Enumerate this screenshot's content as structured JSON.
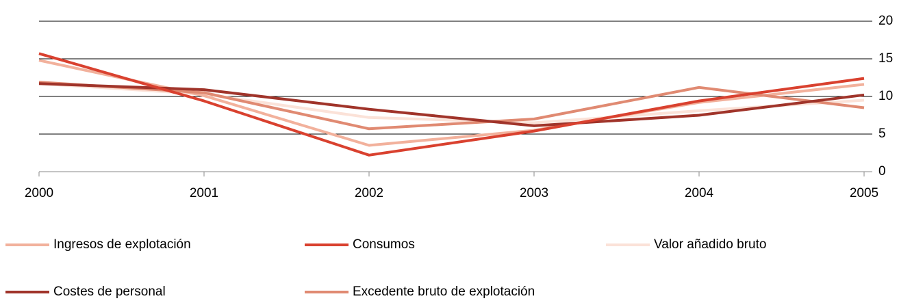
{
  "chart_data": {
    "type": "line",
    "categories": [
      "2000",
      "2001",
      "2002",
      "2003",
      "2004",
      "2005"
    ],
    "series": [
      {
        "name": "Ingresos de explotación",
        "color": "#f2b19c",
        "values": [
          14.8,
          10.1,
          3.5,
          5.5,
          9.2,
          11.6
        ]
      },
      {
        "name": "Consumos",
        "color": "#d9412f",
        "values": [
          15.7,
          9.4,
          2.2,
          5.4,
          9.4,
          12.4
        ]
      },
      {
        "name": "Valor añadido bruto",
        "color": "#fbe2d8",
        "values": [
          11.7,
          10.3,
          7.2,
          6.5,
          8.1,
          9.5
        ]
      },
      {
        "name": "Costes de personal",
        "color": "#a0342a",
        "values": [
          11.7,
          10.9,
          8.3,
          6.1,
          7.5,
          10.2
        ]
      },
      {
        "name": "Excedente bruto de explotación",
        "color": "#e08a72",
        "values": [
          11.9,
          10.5,
          5.7,
          7.0,
          11.2,
          8.5
        ]
      }
    ],
    "ylim": [
      0,
      20
    ],
    "yticks": [
      0,
      5,
      10,
      15,
      20
    ],
    "grid": true,
    "y_axis_side": "right",
    "legend": "bottom"
  }
}
